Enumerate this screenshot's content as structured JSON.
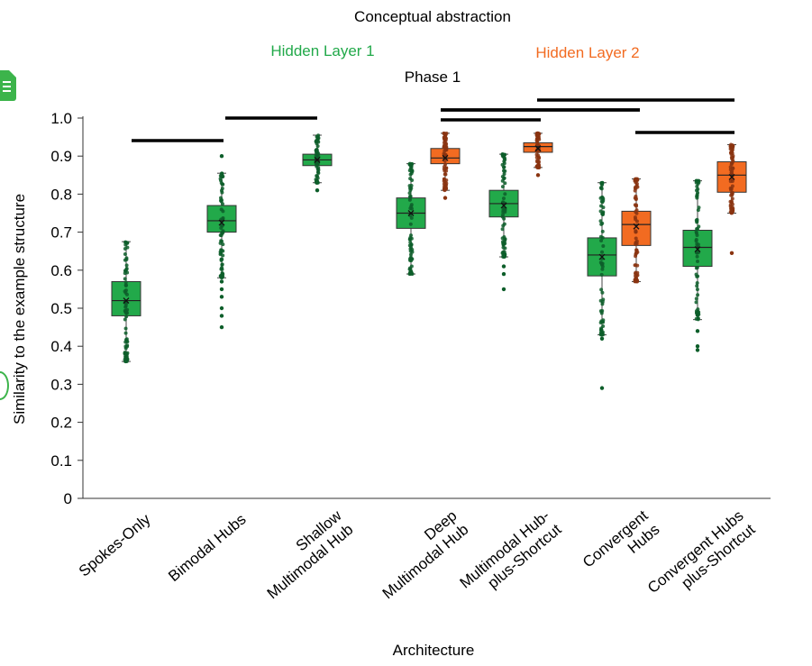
{
  "chart_data": {
    "type": "box",
    "title": "Conceptual abstraction",
    "subtitle": "Phase 1",
    "legend": [
      {
        "label": "Hidden Layer 1",
        "color": "#22a94a"
      },
      {
        "label": "Hidden Layer 2",
        "color": "#f26b21"
      }
    ],
    "xlabel": "Architecture",
    "ylabel": "Similarity to the example structure",
    "ylim": [
      0,
      1.0
    ],
    "yticks": [
      "0",
      "0.1",
      "0.2",
      "0.3",
      "0.4",
      "0.5",
      "0.6",
      "0.7",
      "0.8",
      "0.9",
      "1.0"
    ],
    "categories": [
      [
        "Spokes-Only"
      ],
      [
        "Bimodal Hubs"
      ],
      [
        "Shallow",
        "Multimodal Hub"
      ],
      [
        "Deep",
        "Multimodal Hub"
      ],
      [
        "Multimodal Hub-",
        "plus-Shortcut"
      ],
      [
        "Convergent",
        "Hubs"
      ],
      [
        "Convergent Hubs",
        "plus-Shortcut"
      ]
    ],
    "boxes": [
      {
        "category": 0,
        "layer": 1,
        "whisker_low": 0.36,
        "q1": 0.48,
        "median": 0.52,
        "q3": 0.57,
        "whisker_high": 0.675,
        "mean": 0.52,
        "outliers": [
          0.37,
          0.38
        ]
      },
      {
        "category": 1,
        "layer": 1,
        "whisker_low": 0.58,
        "q1": 0.7,
        "median": 0.73,
        "q3": 0.77,
        "whisker_high": 0.855,
        "mean": 0.725,
        "outliers": [
          0.45,
          0.48,
          0.5,
          0.53,
          0.55,
          0.57,
          0.9
        ]
      },
      {
        "category": 2,
        "layer": 1,
        "whisker_low": 0.83,
        "q1": 0.875,
        "median": 0.89,
        "q3": 0.905,
        "whisker_high": 0.955,
        "mean": 0.89,
        "outliers": [
          0.81
        ]
      },
      {
        "category": 3,
        "layer": 1,
        "whisker_low": 0.59,
        "q1": 0.71,
        "median": 0.75,
        "q3": 0.79,
        "whisker_high": 0.88,
        "mean": 0.75,
        "outliers": []
      },
      {
        "category": 3,
        "layer": 2,
        "whisker_low": 0.81,
        "q1": 0.88,
        "median": 0.895,
        "q3": 0.92,
        "whisker_high": 0.96,
        "mean": 0.895,
        "outliers": [
          0.79
        ]
      },
      {
        "category": 4,
        "layer": 1,
        "whisker_low": 0.635,
        "q1": 0.74,
        "median": 0.775,
        "q3": 0.81,
        "whisker_high": 0.905,
        "mean": 0.77,
        "outliers": [
          0.55,
          0.59,
          0.61
        ]
      },
      {
        "category": 4,
        "layer": 2,
        "whisker_low": 0.87,
        "q1": 0.91,
        "median": 0.925,
        "q3": 0.935,
        "whisker_high": 0.96,
        "mean": 0.92,
        "outliers": [
          0.85
        ]
      },
      {
        "category": 5,
        "layer": 1,
        "whisker_low": 0.43,
        "q1": 0.585,
        "median": 0.64,
        "q3": 0.685,
        "whisker_high": 0.83,
        "mean": 0.635,
        "outliers": [
          0.29,
          0.42
        ]
      },
      {
        "category": 5,
        "layer": 2,
        "whisker_low": 0.57,
        "q1": 0.665,
        "median": 0.72,
        "q3": 0.755,
        "whisker_high": 0.84,
        "mean": 0.715,
        "outliers": []
      },
      {
        "category": 6,
        "layer": 1,
        "whisker_low": 0.47,
        "q1": 0.61,
        "median": 0.66,
        "q3": 0.705,
        "whisker_high": 0.835,
        "mean": 0.655,
        "outliers": [
          0.39,
          0.4,
          0.44
        ]
      },
      {
        "category": 6,
        "layer": 2,
        "whisker_low": 0.75,
        "q1": 0.805,
        "median": 0.85,
        "q3": 0.885,
        "whisker_high": 0.93,
        "mean": 0.845,
        "outliers": [
          0.645
        ]
      }
    ],
    "significance_bars": [
      {
        "from": 0,
        "to": 1,
        "y": 0.94
      },
      {
        "from": 1,
        "to": 2,
        "y": 1.0
      },
      {
        "from": 3,
        "to": 4,
        "y": 0.99
      },
      {
        "from": 3,
        "to": 4,
        "y": 1.02
      },
      {
        "from": 3,
        "to": 5,
        "y": 1.02
      },
      {
        "from": 4,
        "to": 6,
        "y": 1.05
      },
      {
        "from": 5,
        "to": 6,
        "y": 0.955
      }
    ]
  }
}
